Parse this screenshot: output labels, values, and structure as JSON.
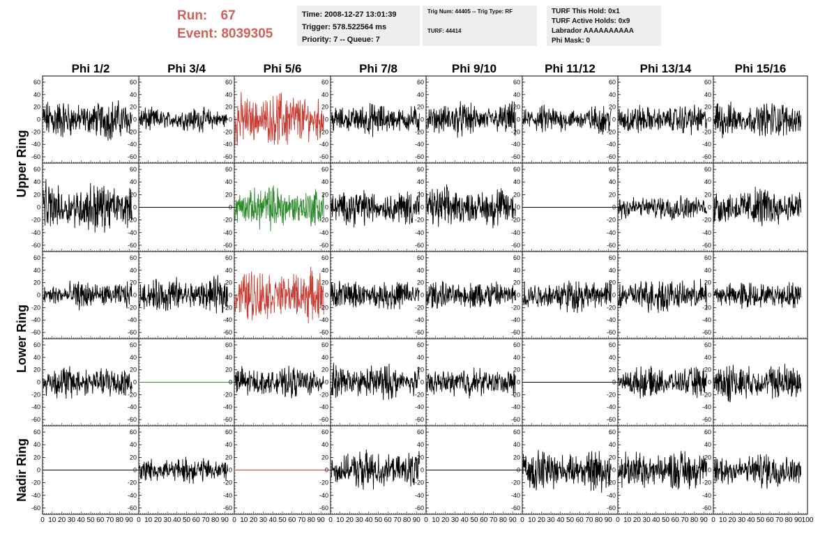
{
  "header": {
    "run_label": "Run:",
    "run_value": "67",
    "event_label": "Event:",
    "event_value": "8039305",
    "time_box": {
      "time": "Time: 2008-12-27 13:01:39",
      "trigger": "Trigger: 578.522564 ms",
      "priority": "Priority: 7 -- Queue: 7"
    },
    "trig_box": {
      "trig": "Trig Num: 44405 -- Trig Type: RF",
      "turf": "TURF: 44414"
    },
    "turf_box": {
      "hold": "TURF This Hold: 0x1",
      "active": "TURF Active Holds: 0x9",
      "labrador": "Labrador AAAAAAAAAA",
      "phimask": "Phi Mask: 0"
    }
  },
  "chart_data": {
    "type": "line",
    "columns": [
      "Phi 1/2",
      "Phi 3/4",
      "Phi 5/6",
      "Phi 7/8",
      "Phi 9/10",
      "Phi 11/12",
      "Phi 13/14",
      "Phi 15/16"
    ],
    "row_groups": [
      "Upper Ring",
      "Lower Ring",
      "Nadir Ring"
    ],
    "ylim": [
      -70,
      70
    ],
    "y_ticks": [
      -60,
      -40,
      -20,
      0,
      20,
      40,
      60
    ],
    "xlim": [
      0,
      100
    ],
    "x_tick_labels": [
      "0",
      "10",
      "20",
      "30",
      "40",
      "50",
      "60",
      "70",
      "80",
      "90",
      "100"
    ],
    "trace_colors": {
      "default": "#000000",
      "trigger": "#c83c32",
      "second": "#2a8a2a"
    },
    "panels": [
      {
        "row": 0,
        "col": 0,
        "amp": 20,
        "color": "default"
      },
      {
        "row": 0,
        "col": 1,
        "amp": 12,
        "color": "default"
      },
      {
        "row": 0,
        "col": 2,
        "amp": 28,
        "color": "trigger"
      },
      {
        "row": 0,
        "col": 3,
        "amp": 16,
        "color": "default"
      },
      {
        "row": 0,
        "col": 4,
        "amp": 17,
        "color": "default"
      },
      {
        "row": 0,
        "col": 5,
        "amp": 14,
        "color": "default"
      },
      {
        "row": 0,
        "col": 6,
        "amp": 15,
        "color": "default"
      },
      {
        "row": 0,
        "col": 7,
        "amp": 18,
        "color": "default"
      },
      {
        "row": 1,
        "col": 0,
        "amp": 25,
        "color": "default"
      },
      {
        "row": 1,
        "col": 1,
        "amp": 0,
        "color": "default"
      },
      {
        "row": 1,
        "col": 2,
        "amp": 22,
        "color": "second"
      },
      {
        "row": 1,
        "col": 3,
        "amp": 18,
        "color": "default"
      },
      {
        "row": 1,
        "col": 4,
        "amp": 20,
        "color": "default"
      },
      {
        "row": 1,
        "col": 5,
        "amp": 0,
        "color": "default"
      },
      {
        "row": 1,
        "col": 6,
        "amp": 13,
        "color": "default"
      },
      {
        "row": 1,
        "col": 7,
        "amp": 20,
        "color": "default"
      },
      {
        "row": 2,
        "col": 0,
        "amp": 14,
        "color": "default"
      },
      {
        "row": 2,
        "col": 1,
        "amp": 18,
        "color": "default"
      },
      {
        "row": 2,
        "col": 2,
        "amp": 26,
        "color": "trigger"
      },
      {
        "row": 2,
        "col": 3,
        "amp": 15,
        "color": "default"
      },
      {
        "row": 2,
        "col": 4,
        "amp": 15,
        "color": "default"
      },
      {
        "row": 2,
        "col": 5,
        "amp": 17,
        "color": "default"
      },
      {
        "row": 2,
        "col": 6,
        "amp": 18,
        "color": "default"
      },
      {
        "row": 2,
        "col": 7,
        "amp": 14,
        "color": "default"
      },
      {
        "row": 3,
        "col": 0,
        "amp": 17,
        "color": "default"
      },
      {
        "row": 3,
        "col": 1,
        "amp": 0,
        "color": "second"
      },
      {
        "row": 3,
        "col": 2,
        "amp": 15,
        "color": "default"
      },
      {
        "row": 3,
        "col": 3,
        "amp": 18,
        "color": "default"
      },
      {
        "row": 3,
        "col": 4,
        "amp": 15,
        "color": "default"
      },
      {
        "row": 3,
        "col": 5,
        "amp": 0,
        "color": "default"
      },
      {
        "row": 3,
        "col": 6,
        "amp": 15,
        "color": "default"
      },
      {
        "row": 3,
        "col": 7,
        "amp": 19,
        "color": "default"
      },
      {
        "row": 4,
        "col": 0,
        "amp": 0,
        "color": "default"
      },
      {
        "row": 4,
        "col": 1,
        "amp": 13,
        "color": "default"
      },
      {
        "row": 4,
        "col": 2,
        "amp": 0,
        "color": "trigger"
      },
      {
        "row": 4,
        "col": 3,
        "amp": 19,
        "color": "default"
      },
      {
        "row": 4,
        "col": 4,
        "amp": 0,
        "color": "default"
      },
      {
        "row": 4,
        "col": 5,
        "amp": 20,
        "color": "default"
      },
      {
        "row": 4,
        "col": 6,
        "amp": 20,
        "color": "default"
      },
      {
        "row": 4,
        "col": 7,
        "amp": 18,
        "color": "default"
      }
    ]
  }
}
